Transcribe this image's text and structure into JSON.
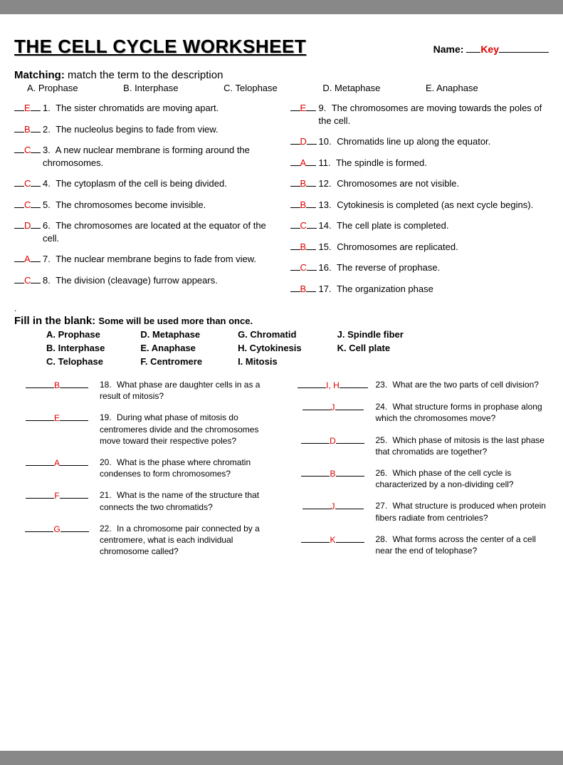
{
  "header": {
    "title": "THE CELL CYCLE WORKSHEET",
    "name_label": "Name:",
    "key": "Key"
  },
  "matching": {
    "heading": "Matching:",
    "subheading": "match the term to the description",
    "options": {
      "A": "A. Prophase",
      "B": "B. Interphase",
      "C": "C. Telophase",
      "D": "D. Metaphase",
      "E": "E. Anaphase"
    },
    "left": [
      {
        "ans": "E",
        "num": "1.",
        "text": "The sister chromatids are moving apart."
      },
      {
        "ans": "B",
        "num": "2.",
        "text": "The nucleolus begins to fade from view."
      },
      {
        "ans": "C",
        "num": "3.",
        "text": "A new nuclear membrane is forming around the chromosomes."
      },
      {
        "ans": "C",
        "num": "4.",
        "text": "The cytoplasm of the cell is being divided."
      },
      {
        "ans": "C",
        "num": "5.",
        "text": "The chromosomes become invisible."
      },
      {
        "ans": "D",
        "num": "6.",
        "text": "The chromosomes are located at the equator of the cell."
      },
      {
        "ans": "A",
        "num": "7.",
        "text": "The nuclear membrane begins to fade from view."
      },
      {
        "ans": "C",
        "num": "8.",
        "text": "The division (cleavage) furrow appears."
      }
    ],
    "right": [
      {
        "ans": "E",
        "num": "9.",
        "text": "The chromosomes are moving towards the poles of the cell."
      },
      {
        "ans": "D",
        "num": "10.",
        "text": "Chromatids line up along the equator."
      },
      {
        "ans": "A",
        "num": "11.",
        "text": "The spindle is formed."
      },
      {
        "ans": "B",
        "num": "12.",
        "text": "Chromosomes are not visible."
      },
      {
        "ans": "B",
        "num": "13.",
        "text": "Cytokinesis is completed (as next cycle begins)."
      },
      {
        "ans": "C",
        "num": "14.",
        "text": "The cell plate is completed."
      },
      {
        "ans": "B",
        "num": "15.",
        "text": "Chromosomes are replicated."
      },
      {
        "ans": "C",
        "num": "16.",
        "text": "The reverse of prophase."
      },
      {
        "ans": "B",
        "num": "17.",
        "text": "The organization phase"
      }
    ]
  },
  "fillblank": {
    "heading": "Fill in the blank:",
    "subheading": "Some will be used more than once.",
    "options": {
      "c1": [
        "A. Prophase",
        "B. Interphase",
        "C. Telophase"
      ],
      "c2": [
        "D. Metaphase",
        "E. Anaphase",
        "F. Centromere"
      ],
      "c3": [
        "G.  Chromatid",
        "H. Cytokinesis",
        "I. Mitosis"
      ],
      "c4": [
        "J. Spindle fiber",
        "K. Cell plate"
      ]
    },
    "left": [
      {
        "ans": "B",
        "num": "18.",
        "text": "What phase are daughter cells in as a result of mitosis?"
      },
      {
        "ans": "E",
        "num": "19.",
        "text": "During what phase of mitosis do centromeres divide and the chromosomes move toward their respective poles?"
      },
      {
        "ans": "A",
        "num": "20.",
        "text": "What is the phase where chromatin condenses to form chromosomes?"
      },
      {
        "ans": "F",
        "num": "21.",
        "text": "What is the name of the structure that connects the two chromatids?"
      },
      {
        "ans": "G",
        "num": "22.",
        "text": "In a chromosome pair connected by a centromere, what is each individual  chromosome called?"
      }
    ],
    "right": [
      {
        "ans": "I, H",
        "num": "23.",
        "text": "What are the two parts of cell division?"
      },
      {
        "ans": "J",
        "num": "24.",
        "text": "What structure forms in prophase along which the chromosomes move?"
      },
      {
        "ans": "D",
        "num": "25.",
        "text": "Which phase of mitosis is the last phase that chromatids are together?"
      },
      {
        "ans": "B",
        "num": "26.",
        "text": "Which phase of the cell cycle is characterized by a non-dividing cell?"
      },
      {
        "ans": "J",
        "num": "27.",
        "text": "What structure is produced when protein fibers radiate from centrioles?"
      },
      {
        "ans": "K",
        "num": "28.",
        "text": "What forms across the center of a cell near the end of telophase?"
      }
    ]
  },
  "colors": {
    "answer": "#d00",
    "text": "#000",
    "background": "#fff"
  }
}
